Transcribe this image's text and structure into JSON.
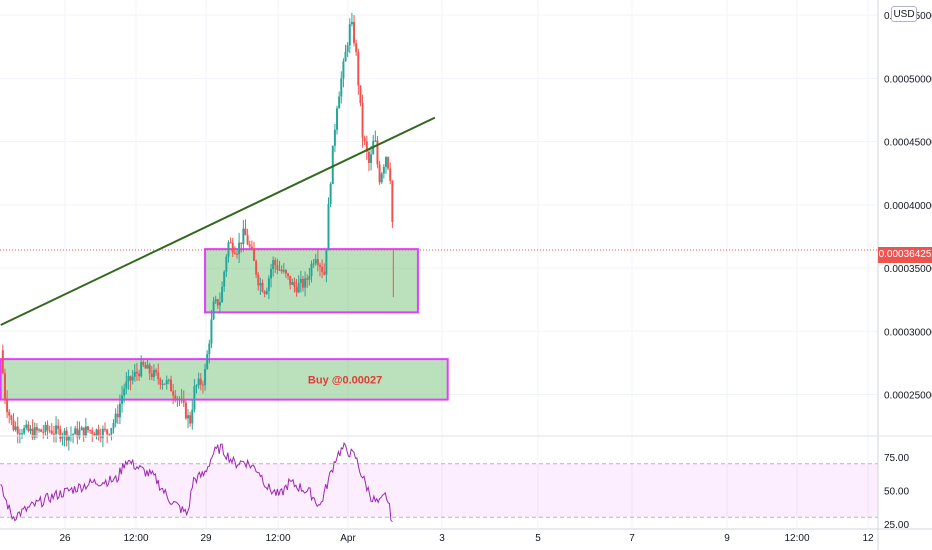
{
  "chart_data": [
    {
      "type": "candlestick",
      "currency": "USD",
      "price_axis_ticks": [
        "0.00025000",
        "0.00030000",
        "0.00035000",
        "0.00040000",
        "0.00045000",
        "0.00050000",
        "0.00055000"
      ],
      "ylim": [
        0.000218,
        0.000562
      ],
      "time_axis_ticks": [
        "26",
        "12:00",
        "29",
        "12:00",
        "Apr",
        "3",
        "5",
        "7",
        "9",
        "12:00",
        "12"
      ],
      "last_price": "0.00036425",
      "annotation": "Buy @0.00027",
      "zones": [
        {
          "name": "upper-zone",
          "from_day": 3.87,
          "to_day": 8.37,
          "low": 0.000315,
          "high": 0.000365
        },
        {
          "name": "buy-zone",
          "from_day": -0.45,
          "to_day": 9.0,
          "low": 0.000246,
          "high": 0.000278
        }
      ],
      "trendline": {
        "from": {
          "day": -0.45,
          "price": 0.000305
        },
        "to": {
          "day": 8.73,
          "price": 0.000469
        }
      },
      "price_path": [
        [
          -0.45,
          0.000285
        ],
        [
          -0.35,
          0.000245
        ],
        [
          -0.2,
          0.000225
        ],
        [
          0.2,
          0.00022
        ],
        [
          0.6,
          0.000222
        ],
        [
          1.0,
          0.000218
        ],
        [
          1.4,
          0.000222
        ],
        [
          1.8,
          0.00022
        ],
        [
          2.0,
          0.000232
        ],
        [
          2.15,
          0.000255
        ],
        [
          2.3,
          0.000262
        ],
        [
          2.55,
          0.000272
        ],
        [
          2.8,
          0.000265
        ],
        [
          3.1,
          0.000258
        ],
        [
          3.35,
          0.000245
        ],
        [
          3.55,
          0.000228
        ],
        [
          3.65,
          0.000255
        ],
        [
          3.85,
          0.000262
        ],
        [
          4.05,
          0.00032
        ],
        [
          4.2,
          0.000325
        ],
        [
          4.35,
          0.00037
        ],
        [
          4.55,
          0.000365
        ],
        [
          4.7,
          0.000378
        ],
        [
          4.85,
          0.000362
        ],
        [
          5.0,
          0.00034
        ],
        [
          5.15,
          0.000332
        ],
        [
          5.3,
          0.000355
        ],
        [
          5.55,
          0.000345
        ],
        [
          5.75,
          0.000335
        ],
        [
          6.0,
          0.000338
        ],
        [
          6.2,
          0.000362
        ],
        [
          6.4,
          0.000345
        ],
        [
          6.5,
          0.00041
        ],
        [
          6.65,
          0.000478
        ],
        [
          6.8,
          0.00051
        ],
        [
          6.95,
          0.000545
        ],
        [
          7.05,
          0.000525
        ],
        [
          7.2,
          0.000455
        ],
        [
          7.35,
          0.00043
        ],
        [
          7.45,
          0.000455
        ],
        [
          7.55,
          0.00042
        ],
        [
          7.7,
          0.00044
        ],
        [
          7.8,
          0.00042
        ],
        [
          7.85,
          0.000364
        ]
      ],
      "rsi": {
        "levels": [
          "75.00",
          "50.00",
          "25.00"
        ],
        "overbought": 70,
        "oversold": 30,
        "ylim": [
          22,
          90
        ],
        "path": [
          [
            -0.45,
            52
          ],
          [
            -0.2,
            30
          ],
          [
            0.2,
            38
          ],
          [
            0.6,
            45
          ],
          [
            1.0,
            50
          ],
          [
            1.5,
            56
          ],
          [
            2.0,
            58
          ],
          [
            2.2,
            73
          ],
          [
            2.5,
            66
          ],
          [
            2.8,
            60
          ],
          [
            3.1,
            44
          ],
          [
            3.3,
            38
          ],
          [
            3.5,
            32
          ],
          [
            3.62,
            58
          ],
          [
            3.85,
            62
          ],
          [
            4.05,
            78
          ],
          [
            4.2,
            82
          ],
          [
            4.5,
            70
          ],
          [
            4.7,
            72
          ],
          [
            5.0,
            65
          ],
          [
            5.2,
            52
          ],
          [
            5.45,
            46
          ],
          [
            5.65,
            56
          ],
          [
            5.9,
            52
          ],
          [
            6.1,
            48
          ],
          [
            6.3,
            38
          ],
          [
            6.5,
            60
          ],
          [
            6.65,
            76
          ],
          [
            6.8,
            82
          ],
          [
            7.05,
            75
          ],
          [
            7.2,
            60
          ],
          [
            7.4,
            44
          ],
          [
            7.55,
            40
          ],
          [
            7.7,
            47
          ],
          [
            7.85,
            24
          ]
        ]
      }
    }
  ]
}
